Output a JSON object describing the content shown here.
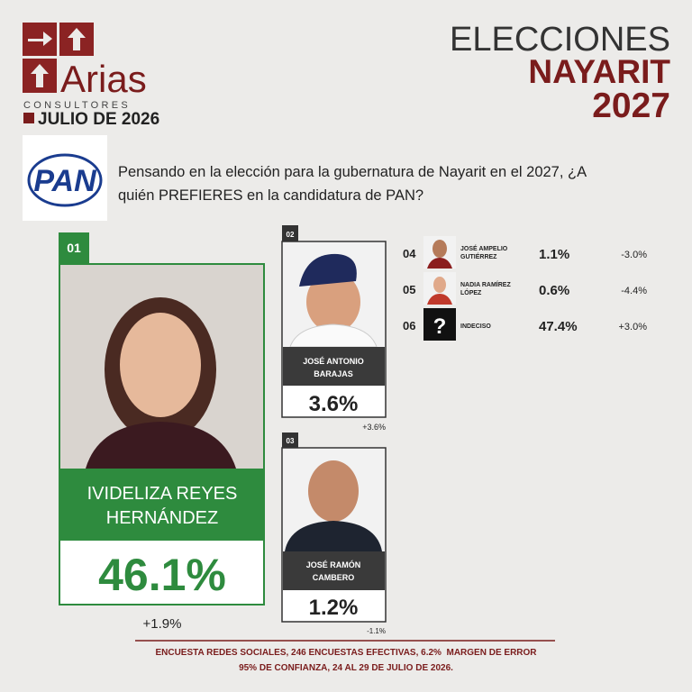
{
  "header": {
    "brand": "Arias",
    "brand_sub": "CONSULTORES",
    "date": "JULIO DE 2026",
    "title_lines": [
      "ELECCIONES",
      "NAYARIT",
      "2027"
    ]
  },
  "party": "PAN",
  "question_lines": [
    "Pensando en la elección para la gubernatura de Nayarit en el 2027, ¿A",
    "quién PREFIERES en la candidatura de PAN?"
  ],
  "candidates": [
    {
      "rank": "01",
      "name_lines": [
        "IVIDELIZA REYES",
        "HERNÁNDEZ"
      ],
      "value": "46.1%",
      "change": "+1.9%"
    },
    {
      "rank": "02",
      "name_lines": [
        "JOSÉ ANTONIO",
        "BARAJAS"
      ],
      "value": "3.6%",
      "change": "+3.6%"
    },
    {
      "rank": "03",
      "name_lines": [
        "JOSÉ RAMÓN",
        "CAMBERO"
      ],
      "value": "1.2%",
      "change": "-1.1%"
    },
    {
      "rank": "04",
      "name_lines": [
        "JOSÉ AMPELIO",
        "GUTIÉRREZ"
      ],
      "value": "1.1%",
      "change": "-3.0%"
    },
    {
      "rank": "05",
      "name_lines": [
        "NADIA RAMÍREZ",
        "LÓPEZ"
      ],
      "value": "0.6%",
      "change": "-4.4%"
    },
    {
      "rank": "06",
      "name_lines": [
        "INDECISO"
      ],
      "icon": "?",
      "value": "47.4%",
      "change": "+3.0%"
    }
  ],
  "footer_lines": [
    "ENCUESTA REDES SOCIALES, 246 ENCUESTAS EFECTIVAS, 6.2%  MARGEN DE ERROR",
    "95% DE CONFIANZA, 24 AL 29 DE JULIO DE 2026."
  ]
}
